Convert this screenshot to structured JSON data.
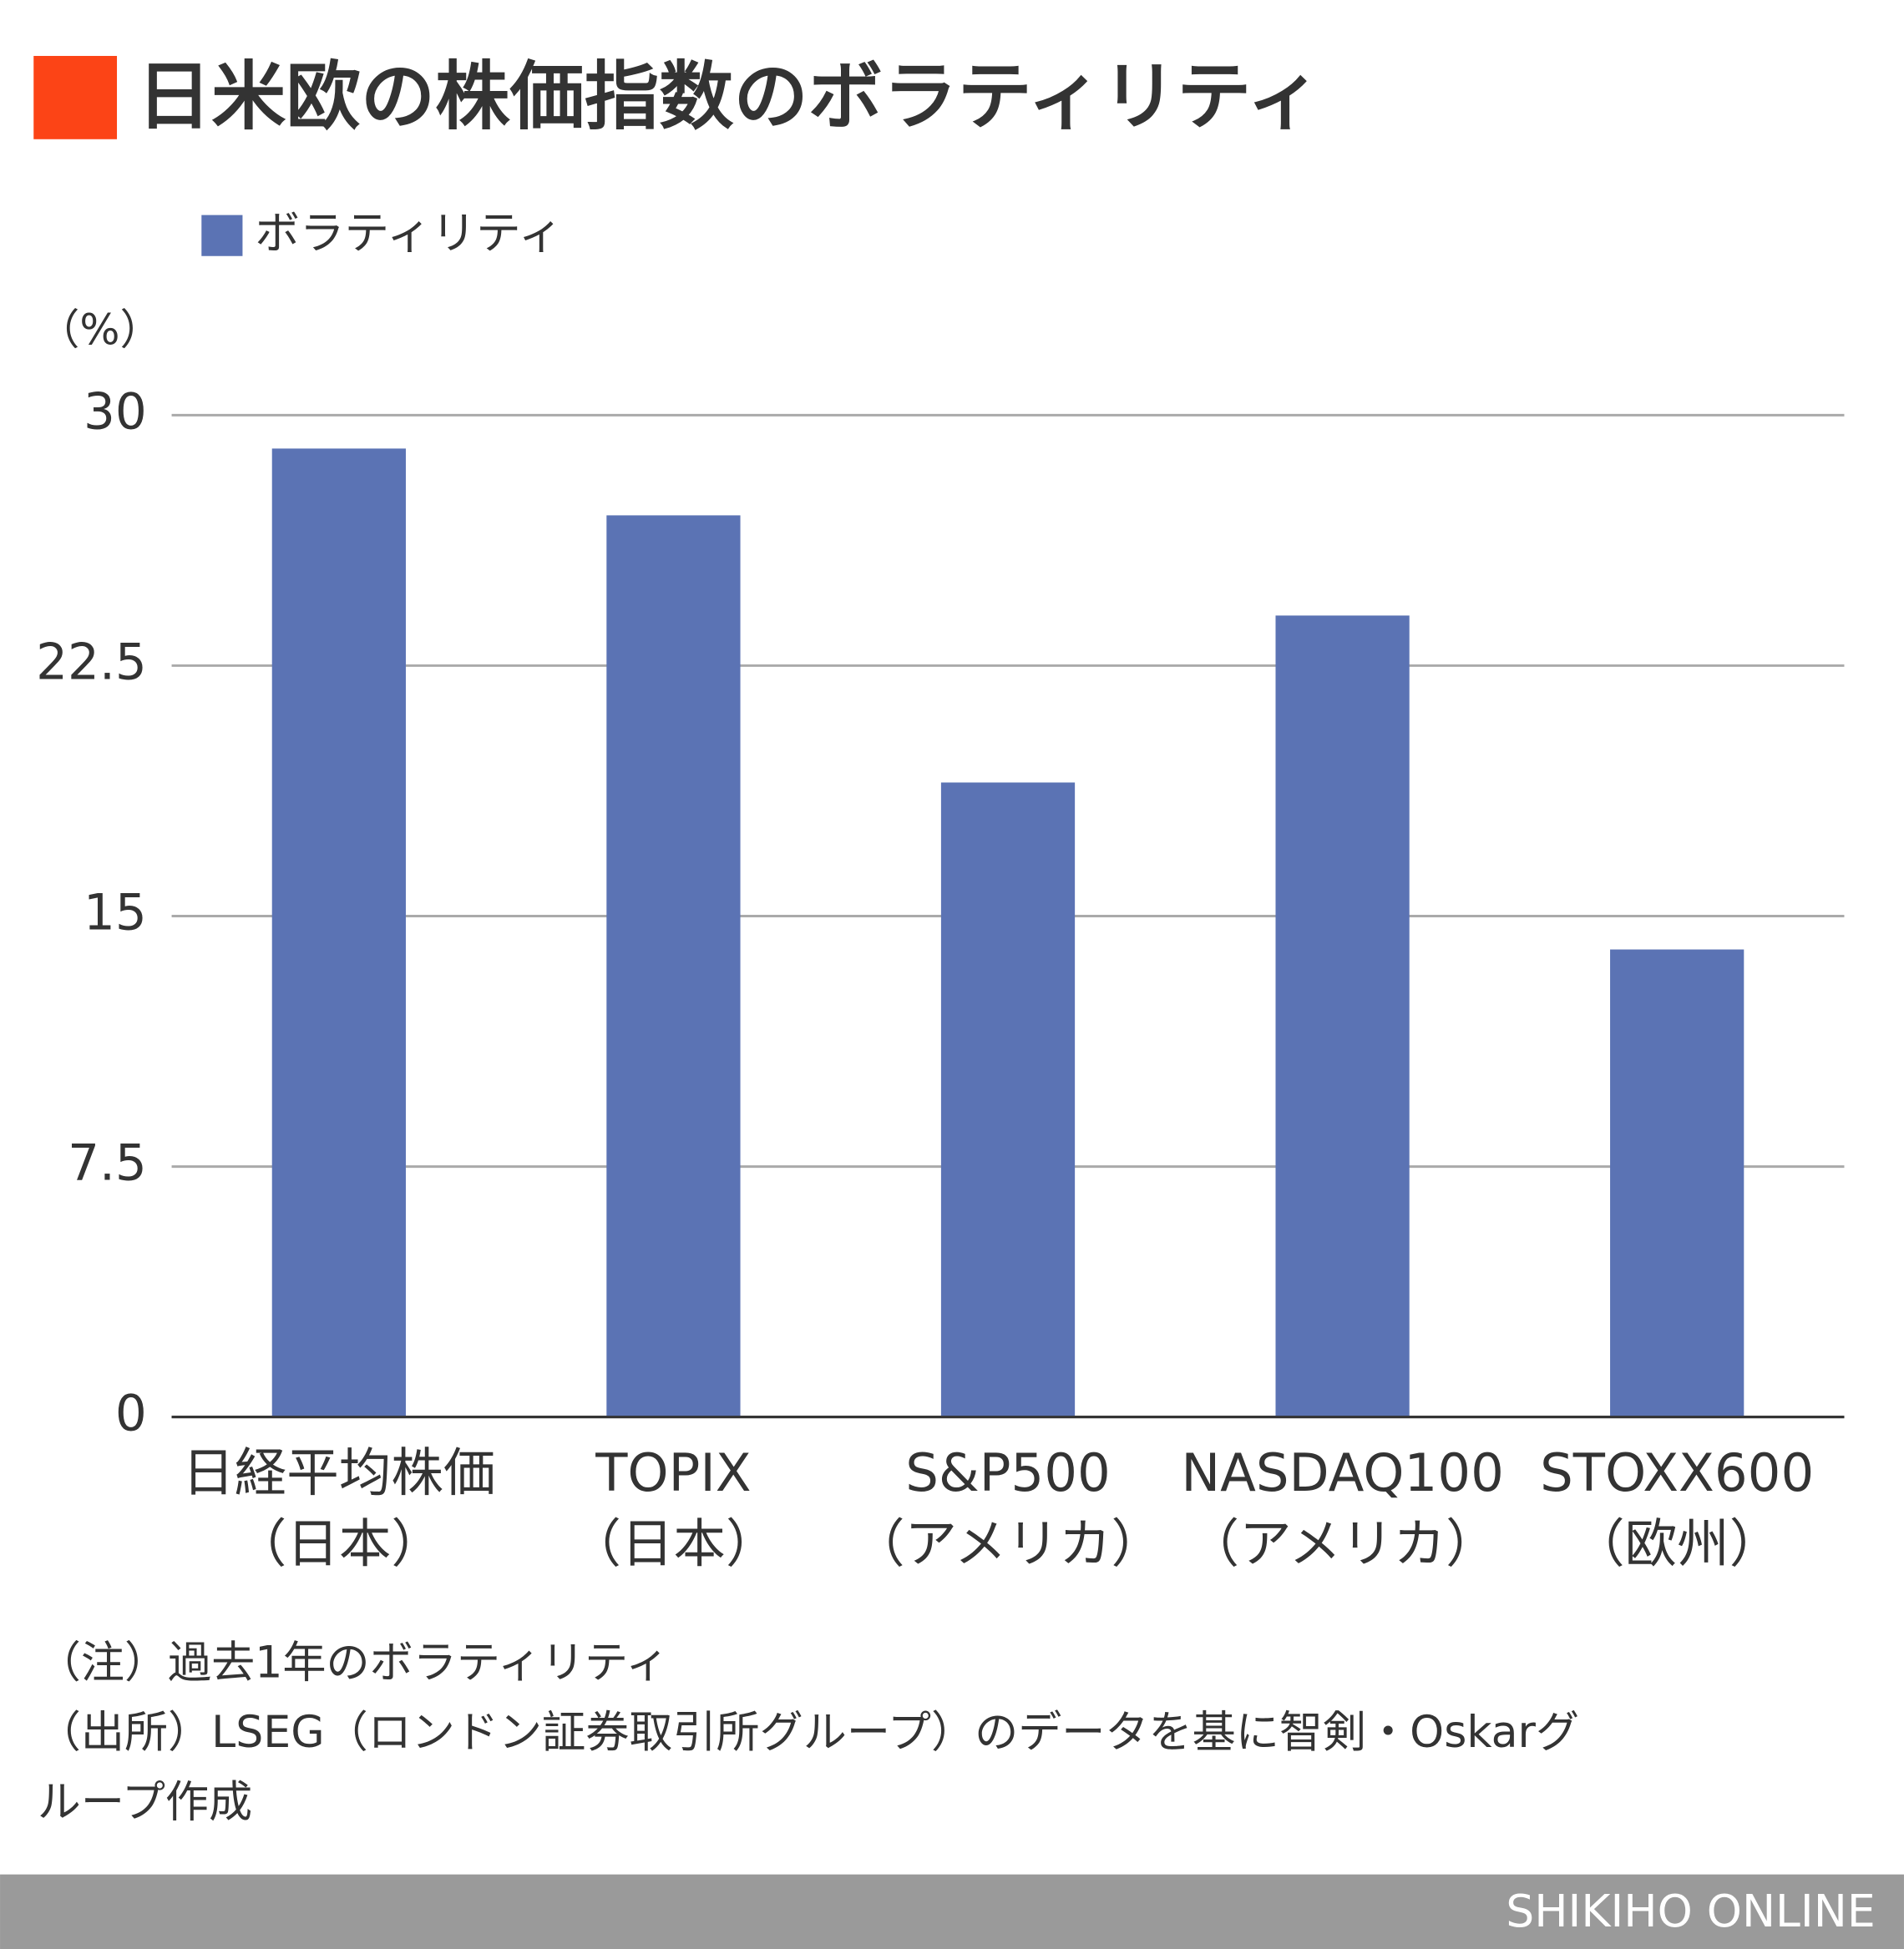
{
  "chart_data": {
    "type": "bar",
    "title": "日米欧の株価指数のボラティリティ",
    "y_label": "（%）",
    "categories": [
      [
        "日経平均株価",
        "（日本）"
      ],
      [
        "TOPIX",
        "（日本）"
      ],
      [
        "S&P500",
        "（アメリカ）"
      ],
      [
        "NASDAQ100",
        "（アメリカ）"
      ],
      [
        "STOXX600",
        "（欧州）"
      ]
    ],
    "series": [
      {
        "name": "ボラティリティ",
        "color": "#5b73b4",
        "values": [
          29,
          27,
          19,
          24,
          14
        ]
      }
    ],
    "ylim": [
      0,
      30
    ],
    "yticks": [
      0,
      7.5,
      15,
      22.5,
      30
    ],
    "grid": true,
    "legend": "top-left",
    "notes": [
      "（注）過去1年のボラティリティ",
      "（出所）LSEG（ロンドン証券取引所グループ）のデータを基に智剣・Oskarグ",
      "ループ作成"
    ],
    "footer": "SHIKIHO ONLINE"
  }
}
